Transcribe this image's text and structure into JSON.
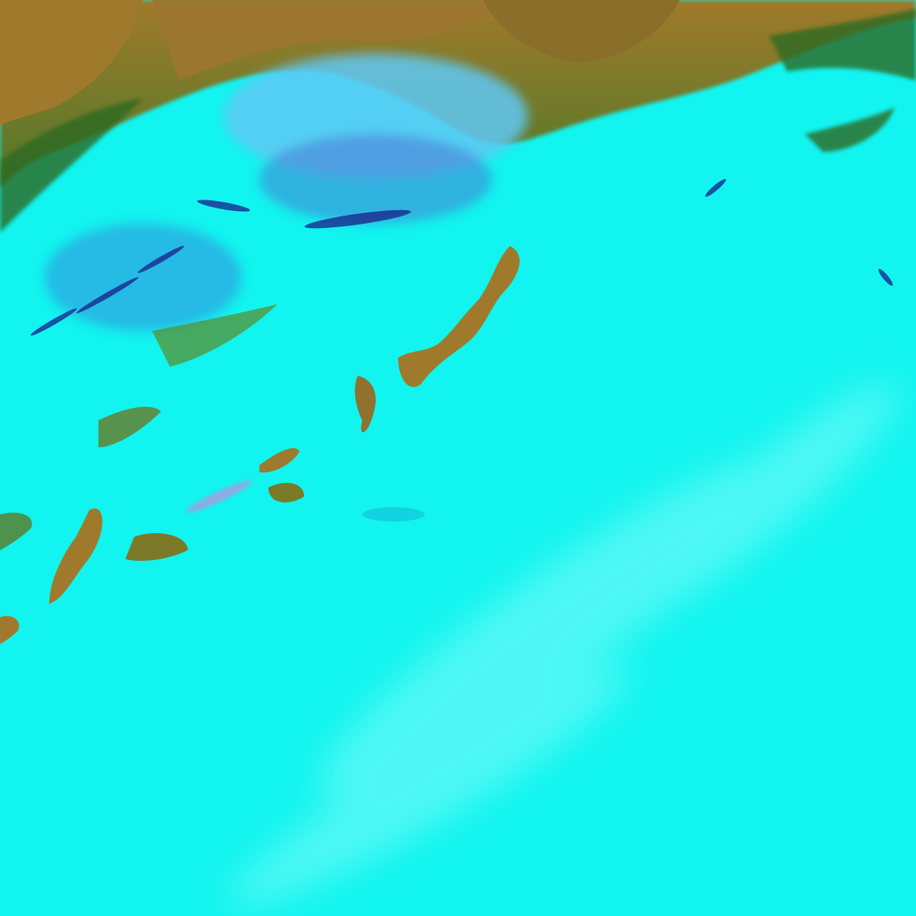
{
  "image": {
    "kind": "false-color satellite imagery",
    "colors": {
      "cloud": "#12f4ef",
      "cloud_light": "#6ffaf6",
      "land": "#a07a2c",
      "land_dark": "#5c6a1e",
      "vegetation": "#2f7a2a",
      "cloud_shadow": "#1a1e8a",
      "ice_blue": "#5fc8f5",
      "plume": "#e07ad8"
    }
  }
}
